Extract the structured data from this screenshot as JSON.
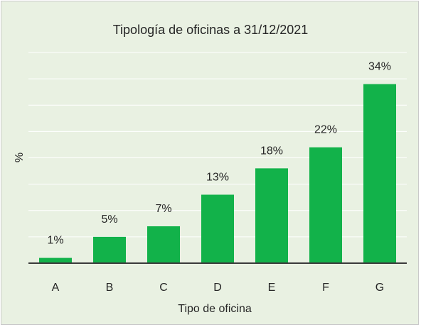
{
  "chart_data": {
    "type": "bar",
    "title": "Tipología  de oficinas a 31/12/2021",
    "xlabel": "Tipo de oficina",
    "ylabel": "%",
    "categories": [
      "A",
      "B",
      "C",
      "D",
      "E",
      "F",
      "G"
    ],
    "values": [
      1,
      5,
      7,
      13,
      18,
      22,
      34
    ],
    "data_labels": [
      "1%",
      "5%",
      "7%",
      "13%",
      "18%",
      "22%",
      "34%"
    ],
    "ylim": [
      0,
      40
    ],
    "grid": true,
    "legend": "none",
    "colors": {
      "bar": "#12b24a",
      "background": "#e9f1e2",
      "grid": "#ffffff",
      "axis": "#3a3a3a",
      "text": "#262626"
    }
  }
}
